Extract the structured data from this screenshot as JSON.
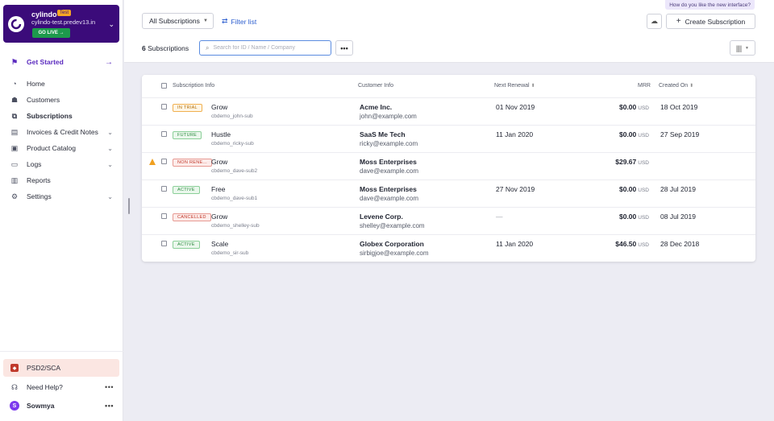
{
  "site": {
    "name": "cylindo",
    "badge": "Test",
    "domain": "cylindo-test.predev13.in",
    "go_live_label": "GO LIVE →",
    "logo_letter": "C"
  },
  "sidebar": {
    "get_started": "Get Started",
    "items": [
      {
        "label": "Home",
        "icon": "home-icon"
      },
      {
        "label": "Customers",
        "icon": "customers-icon"
      },
      {
        "label": "Subscriptions",
        "icon": "subscriptions-icon"
      },
      {
        "label": "Invoices & Credit Notes",
        "icon": "invoices-icon"
      },
      {
        "label": "Product Catalog",
        "icon": "catalog-icon"
      },
      {
        "label": "Logs",
        "icon": "logs-icon"
      },
      {
        "label": "Reports",
        "icon": "reports-icon"
      },
      {
        "label": "Settings",
        "icon": "gear-icon"
      }
    ],
    "sca_label": "PSD2/SCA",
    "help_label": "Need Help?",
    "user_name": "Sowmya",
    "user_initial": "S"
  },
  "header": {
    "feedback": "How do you like the new interface?",
    "view_select": "All Subscriptions",
    "filter_label": "Filter list",
    "create_label": "Create Subscription",
    "count_number": "6",
    "count_label": "Subscriptions",
    "search_placeholder": "Search for ID / Name / Company",
    "more_label": "•••"
  },
  "table": {
    "columns": {
      "subscription": "Subscription Info",
      "customer": "Customer Info",
      "renewal": "Next Renewal",
      "mrr": "MRR",
      "created": "Created On"
    },
    "rows": [
      {
        "status": "IN TRIAL",
        "status_kind": "trial",
        "plan": "Grow",
        "id": "cbdemo_john-sub",
        "customer": "Acme Inc.",
        "email": "john@example.com",
        "renewal": "01 Nov 2019",
        "mrr": "$0.00",
        "currency": "USD",
        "created": "18 Oct 2019",
        "warning": false
      },
      {
        "status": "FUTURE",
        "status_kind": "future",
        "plan": "Hustle",
        "id": "cbdemo_ricky-sub",
        "customer": "SaaS Me Tech",
        "email": "ricky@example.com",
        "renewal": "11 Jan 2020",
        "mrr": "$0.00",
        "currency": "USD",
        "created": "27 Sep 2019",
        "warning": false
      },
      {
        "status": "NON RENE...",
        "status_kind": "nonrenewing",
        "plan": "Grow",
        "id": "cbdemo_dave-sub2",
        "customer": "Moss Enterprises",
        "email": "dave@example.com",
        "renewal": "",
        "mrr": "$29.67",
        "currency": "USD",
        "created": "",
        "warning": true
      },
      {
        "status": "ACTIVE",
        "status_kind": "active",
        "plan": "Free",
        "id": "cbdemo_dave-sub1",
        "customer": "Moss Enterprises",
        "email": "dave@example.com",
        "renewal": "27 Nov 2019",
        "mrr": "$0.00",
        "currency": "USD",
        "created": "28 Jul 2019",
        "warning": false
      },
      {
        "status": "CANCELLED",
        "status_kind": "cancelled",
        "plan": "Grow",
        "id": "cbdemo_shelley-sub",
        "customer": "Levene Corp.",
        "email": "shelley@example.com",
        "renewal": "—",
        "mrr": "$0.00",
        "currency": "USD",
        "created": "08 Jul 2019",
        "warning": false
      },
      {
        "status": "ACTIVE",
        "status_kind": "active",
        "plan": "Scale",
        "id": "cbdemo_sir-sub",
        "customer": "Globex Corporation",
        "email": "sirbigjoe@example.com",
        "renewal": "11 Jan 2020",
        "mrr": "$46.50",
        "currency": "USD",
        "created": "28 Dec 2018",
        "warning": false
      }
    ]
  },
  "colors": {
    "brand": "#3b0b7a",
    "accent": "#5b2bbf",
    "link": "#2c5ecf",
    "go_live": "#1d9a4c"
  }
}
